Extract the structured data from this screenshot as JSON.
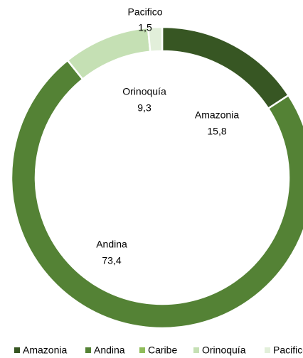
{
  "chart_data": {
    "type": "donut",
    "categories": [
      "Amazonia",
      "Andina",
      "Caribe",
      "Orinoquía",
      "Pacifico"
    ],
    "values": [
      15.8,
      73.4,
      0,
      9.3,
      1.5
    ],
    "value_labels": [
      "15,8",
      "73,4",
      null,
      "9,3",
      "1,5"
    ],
    "colors": [
      "#375623",
      "#548235",
      "#8fbc5a",
      "#c5e0b4",
      "#e2efda"
    ],
    "legend": "bottom"
  }
}
